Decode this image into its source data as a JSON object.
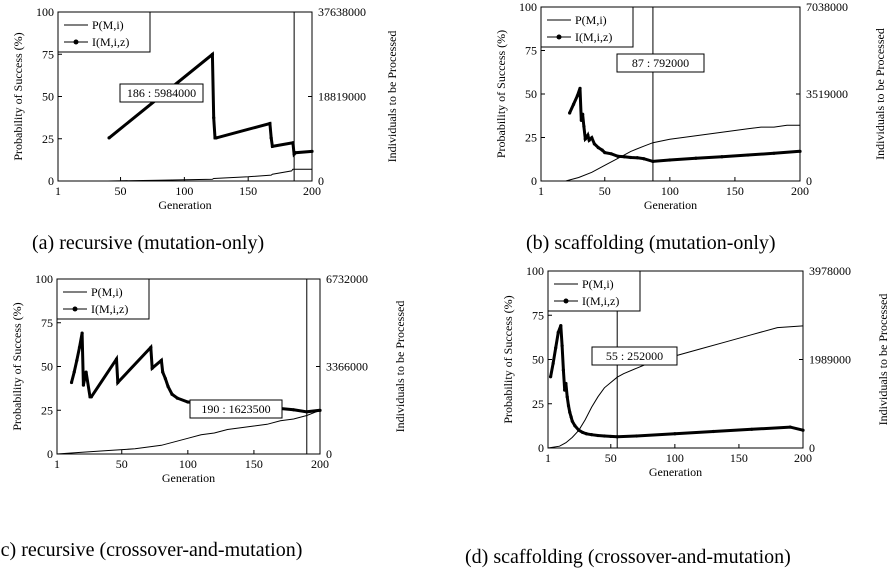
{
  "chart_data": [
    {
      "type": "line",
      "caption": "(a) recursive (mutation-only)",
      "xlabel": "Generation",
      "ylabel": "Probability of Success (%)",
      "y2label": "Individuals to be Processed",
      "xticks": [
        "1",
        "50",
        "100",
        "150",
        "200"
      ],
      "yticks": [
        "0",
        "25",
        "50",
        "75",
        "100"
      ],
      "y2ticks": [
        "0",
        "18819000",
        "37638000"
      ],
      "xlim": [
        1,
        200
      ],
      "ylim": [
        0,
        100
      ],
      "y2lim": [
        0,
        37638000
      ],
      "legend": "top-left",
      "annotation": "186 : 5984000",
      "vline_x": 186,
      "series": [
        {
          "name": "P(M,i)",
          "axis": "left",
          "x": [
            1,
            40,
            80,
            122,
            123,
            150,
            168,
            169,
            184,
            185,
            200
          ],
          "y": [
            0,
            0,
            0.5,
            1,
            1.5,
            2.5,
            3.5,
            4,
            6,
            7,
            7
          ]
        },
        {
          "name": "I(M,i,z)",
          "axis": "right",
          "x": [
            41,
            122,
            123,
            124,
            125,
            167,
            168,
            169,
            185,
            186,
            187,
            200
          ],
          "y": [
            9600000,
            28200000,
            14100000,
            9600000,
            9600000,
            12800000,
            9600000,
            7700000,
            8500000,
            5984000,
            6300000,
            6600000
          ]
        }
      ]
    },
    {
      "type": "line",
      "caption": "(b) scaffolding (mutation-only)",
      "xlabel": "Generation",
      "ylabel": "Probability of Success (%)",
      "y2label": "Individuals to be Processed",
      "xticks": [
        "1",
        "50",
        "100",
        "150",
        "200"
      ],
      "yticks": [
        "0",
        "25",
        "50",
        "75",
        "100"
      ],
      "y2ticks": [
        "0",
        "3519000",
        "7038000"
      ],
      "xlim": [
        1,
        200
      ],
      "ylim": [
        0,
        100
      ],
      "y2lim": [
        0,
        7038000
      ],
      "legend": "top-left",
      "annotation": "87 : 792000",
      "vline_x": 87,
      "series": [
        {
          "name": "P(M,i)",
          "axis": "left",
          "x": [
            1,
            20,
            30,
            40,
            50,
            60,
            70,
            80,
            87,
            100,
            110,
            120,
            130,
            140,
            150,
            160,
            170,
            180,
            190,
            200
          ],
          "y": [
            0,
            0,
            2,
            5,
            9,
            13,
            17,
            20,
            22,
            24,
            25,
            26,
            27,
            28,
            29,
            30,
            31,
            31,
            32,
            32
          ]
        },
        {
          "name": "I(M,i,z)",
          "axis": "right",
          "x": [
            23,
            26,
            29,
            31,
            32,
            33,
            34,
            35,
            36,
            37,
            38,
            40,
            42,
            45,
            48,
            50,
            55,
            60,
            65,
            70,
            75,
            80,
            87,
            100,
            120,
            140,
            160,
            180,
            200
          ],
          "y": [
            2750000,
            3100000,
            3450000,
            3750000,
            2450000,
            2700000,
            2200000,
            1700000,
            1750000,
            1850000,
            1650000,
            1750000,
            1500000,
            1350000,
            1250000,
            1150000,
            1100000,
            1000000,
            980000,
            950000,
            940000,
            900000,
            792000,
            850000,
            920000,
            980000,
            1050000,
            1120000,
            1200000
          ]
        }
      ]
    },
    {
      "type": "line",
      "caption": "(c) recursive (crossover-and-mutation)",
      "xlabel": "Generation",
      "ylabel": "Probability of Success (%)",
      "y2label": "Individuals to be Processed",
      "xticks": [
        "1",
        "50",
        "100",
        "150",
        "200"
      ],
      "yticks": [
        "0",
        "25",
        "50",
        "75",
        "100"
      ],
      "y2ticks": [
        "0",
        "3366000",
        "6732000"
      ],
      "xlim": [
        1,
        200
      ],
      "ylim": [
        0,
        100
      ],
      "y2lim": [
        0,
        6732000
      ],
      "legend": "top-left",
      "annotation": "190 : 1623500",
      "vline_x": 190,
      "series": [
        {
          "name": "P(M,i)",
          "axis": "left",
          "x": [
            1,
            20,
            40,
            60,
            80,
            90,
            100,
            110,
            120,
            130,
            140,
            150,
            160,
            170,
            180,
            190,
            200
          ],
          "y": [
            0,
            1,
            2,
            3,
            5,
            7,
            9,
            11,
            12,
            14,
            15,
            16,
            17,
            19,
            20,
            22,
            25
          ]
        },
        {
          "name": "I(M,i,z)",
          "axis": "right",
          "x": [
            12,
            14,
            16,
            18,
            20,
            21,
            23,
            26,
            27,
            46,
            47,
            72,
            73,
            80,
            81,
            83,
            85,
            88,
            92,
            100,
            110,
            120,
            130,
            140,
            150,
            160,
            170,
            180,
            190,
            200
          ],
          "y": [
            2750000,
            3150000,
            3600000,
            4100000,
            4650000,
            2650000,
            3150000,
            2200000,
            2200000,
            3650000,
            2750000,
            4100000,
            3300000,
            3600000,
            3150000,
            2900000,
            2600000,
            2300000,
            2150000,
            2000000,
            1950000,
            1900000,
            1850000,
            1850000,
            1800000,
            1800000,
            1750000,
            1700000,
            1623500,
            1680000
          ]
        }
      ]
    },
    {
      "type": "line",
      "caption": "(d) scaffolding (crossover-and-mutation)",
      "xlabel": "Generation",
      "ylabel": "Probability of Success (%)",
      "y2label": "Individuals to be Processed",
      "xticks": [
        "1",
        "50",
        "100",
        "150",
        "200"
      ],
      "yticks": [
        "0",
        "25",
        "50",
        "75",
        "100"
      ],
      "y2ticks": [
        "0",
        "1989000",
        "3978000"
      ],
      "xlim": [
        1,
        200
      ],
      "ylim": [
        0,
        100
      ],
      "y2lim": [
        0,
        3978000
      ],
      "legend": "top-left",
      "annotation": "55 : 252000",
      "vline_x": 55,
      "series": [
        {
          "name": "P(M,i)",
          "axis": "left",
          "x": [
            1,
            10,
            15,
            20,
            25,
            30,
            35,
            40,
            45,
            50,
            55,
            60,
            70,
            80,
            100,
            120,
            140,
            160,
            180,
            200
          ],
          "y": [
            0,
            1,
            3,
            6,
            10,
            16,
            23,
            29,
            34,
            37,
            40,
            42,
            45,
            48,
            52,
            56,
            60,
            64,
            68,
            69
          ]
        },
        {
          "name": "I(M,i,z)",
          "axis": "right",
          "x": [
            3,
            5,
            7,
            9,
            11,
            12,
            13,
            14,
            15,
            16,
            17,
            18,
            19,
            20,
            22,
            25,
            28,
            31,
            35,
            40,
            45,
            50,
            55,
            70,
            100,
            130,
            160,
            190,
            200
          ],
          "y": [
            1600000,
            1900000,
            2250000,
            2600000,
            2750000,
            2300000,
            1750000,
            1300000,
            1450000,
            1150000,
            950000,
            800000,
            700000,
            600000,
            500000,
            400000,
            350000,
            320000,
            300000,
            280000,
            270000,
            260000,
            252000,
            270000,
            320000,
            370000,
            420000,
            470000,
            400000
          ]
        }
      ]
    }
  ]
}
